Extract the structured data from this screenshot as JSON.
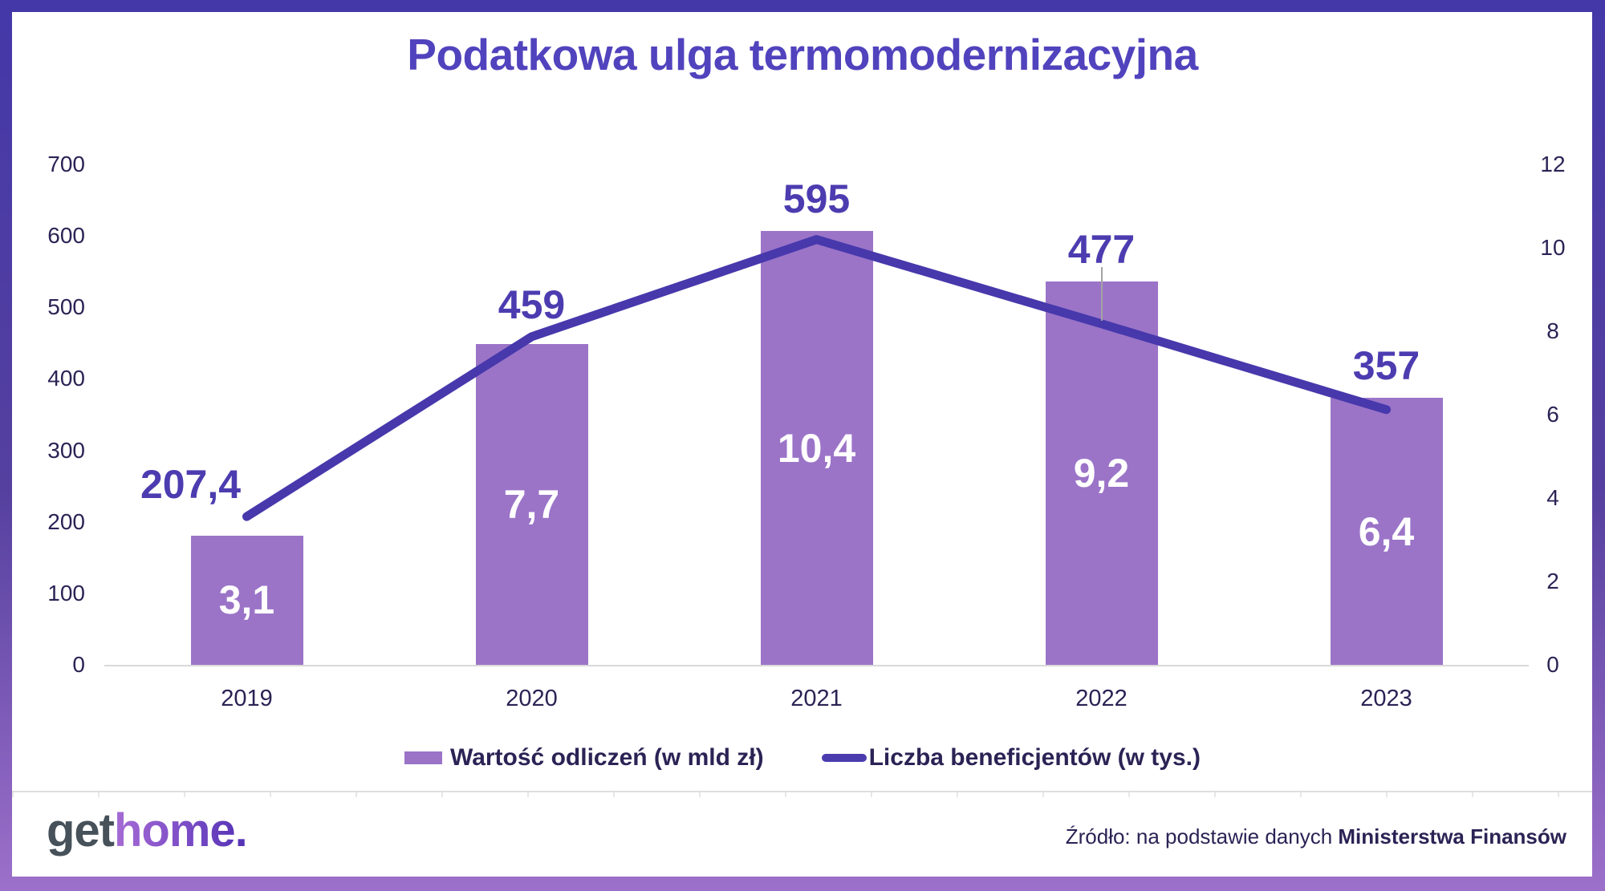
{
  "title": "Podatkowa ulga termomodernizacyjna",
  "chart_data": {
    "type": "bar+line",
    "categories": [
      "2019",
      "2020",
      "2021",
      "2022",
      "2023"
    ],
    "series": [
      {
        "name": "Wartość odliczeń (w mld zł)",
        "type": "bar",
        "axis": "right",
        "values": [
          3.1,
          7.7,
          10.4,
          9.2,
          6.4
        ],
        "labels": [
          "3,1",
          "7,7",
          "10,4",
          "9,2",
          "6,4"
        ]
      },
      {
        "name": "Liczba beneficjentów (w tys.)",
        "type": "line",
        "axis": "left",
        "values": [
          207.4,
          459,
          595,
          477,
          357
        ],
        "labels": [
          "207,4",
          "459",
          "595",
          "477",
          "357"
        ]
      }
    ],
    "left_axis": {
      "min": 0,
      "max": 700,
      "step": 100,
      "ticks": [
        0,
        100,
        200,
        300,
        400,
        500,
        600,
        700
      ]
    },
    "right_axis": {
      "min": 0,
      "max": 12,
      "step": 2,
      "ticks": [
        0,
        2,
        4,
        6,
        8,
        10,
        12
      ]
    },
    "grid": false,
    "legend_position": "bottom"
  },
  "legend": {
    "bar_label": "Wartość odliczeń (w mld zł)",
    "line_label": "Liczba beneficjentów (w tys.)"
  },
  "footer": {
    "logo_get": "get",
    "logo_home": "home.",
    "source_prefix": "Źródło: na podstawie danych ",
    "source_bold": "Ministerstwa Finansów"
  },
  "colors": {
    "frame_top": "#4438a8",
    "frame_bottom": "#9c70ca",
    "bar_fill": "#9b74c8",
    "line_stroke": "#4738ac",
    "data_label": "#4c3cb0",
    "title_text": "#5143bd",
    "axis_text": "#2b2355",
    "bar_value_text": "#ffffff",
    "baseline": "#d9d9d9",
    "leader_line": "#a3a3a3",
    "logo_get": "#46515a",
    "logo_home_start": "#a66bd4",
    "logo_home_end": "#5231b5"
  }
}
